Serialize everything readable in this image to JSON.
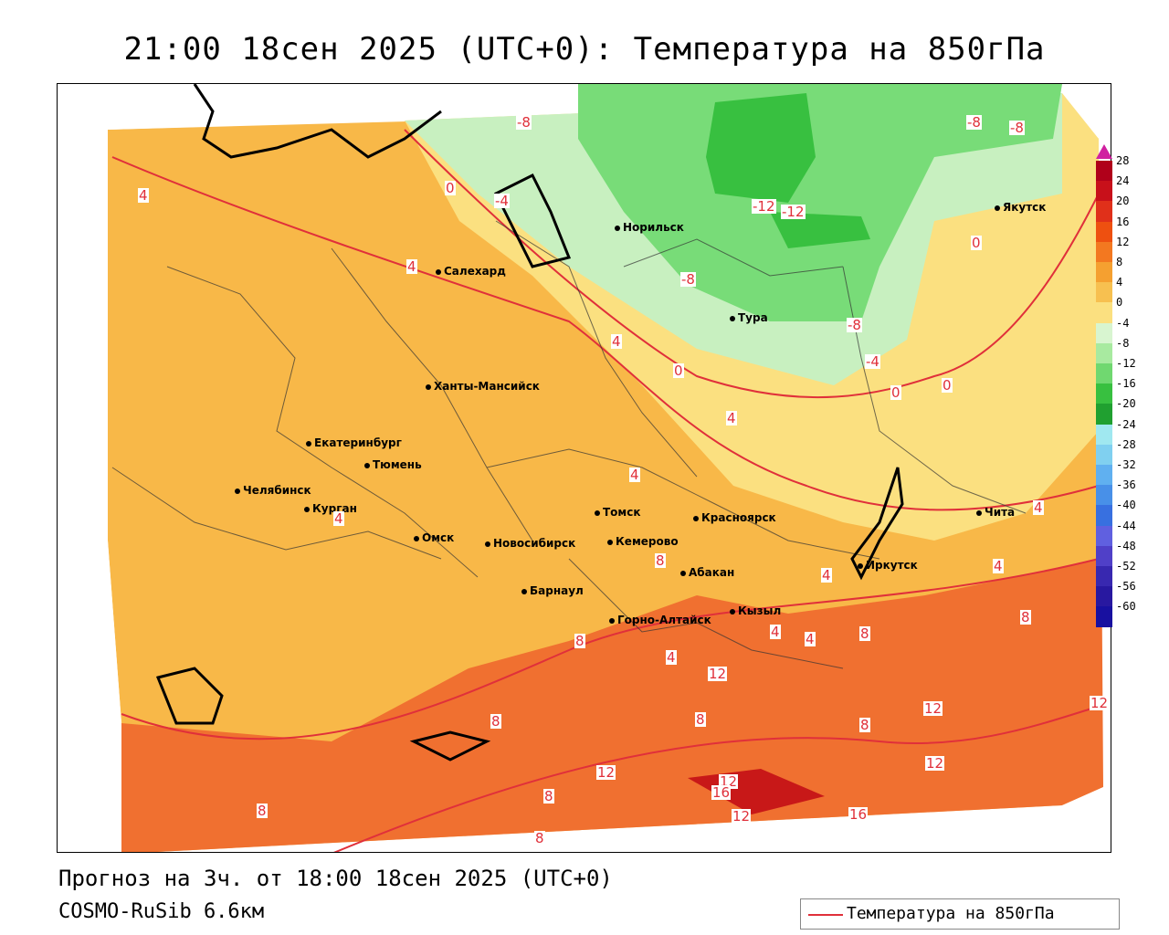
{
  "title": "21:00 18сен 2025 (UTC+0): Температура на 850гПа",
  "footer": {
    "forecast": "Прогноз на 3ч. от 18:00 18сен 2025 (UTC+0)",
    "model": "COSMO-RuSib 6.6км",
    "legend_label": "Температура на 850гПа"
  },
  "colorbar": {
    "ticks": [
      "28",
      "24",
      "20",
      "16",
      "12",
      "8",
      "4",
      "0",
      "-4",
      "-8",
      "-12",
      "-16",
      "-20",
      "-24",
      "-28",
      "-32",
      "-36",
      "-40",
      "-44",
      "-48",
      "-52",
      "-56",
      "-60"
    ],
    "colors": [
      "#b0001a",
      "#c8101a",
      "#e0301a",
      "#ee5010",
      "#f37820",
      "#f5a030",
      "#f7c050",
      "#fbe080",
      "#d8f5d0",
      "#a8eaa0",
      "#70d870",
      "#38c040",
      "#20a030",
      "#a0e8f0",
      "#80d0f0",
      "#60b0f0",
      "#4890e8",
      "#3870e0",
      "#6060e0",
      "#5040c8",
      "#3828b0",
      "#2818a0",
      "#1810a0"
    ]
  },
  "cities": [
    {
      "name": "Норильск"
    },
    {
      "name": "Якутск"
    },
    {
      "name": "Салехард"
    },
    {
      "name": "Тура"
    },
    {
      "name": "Ханты-Мансийск"
    },
    {
      "name": "Екатеринбург"
    },
    {
      "name": "Тюмень"
    },
    {
      "name": "Челябинск"
    },
    {
      "name": "Курган"
    },
    {
      "name": "Омск"
    },
    {
      "name": "Новосибирск"
    },
    {
      "name": "Томск"
    },
    {
      "name": "Кемерово"
    },
    {
      "name": "Красноярск"
    },
    {
      "name": "Абакан"
    },
    {
      "name": "Барнаул"
    },
    {
      "name": "Горно-Алтайск"
    },
    {
      "name": "Кызыл"
    },
    {
      "name": "Иркутск"
    },
    {
      "name": "Чита"
    }
  ],
  "contour_labels": [
    "-8",
    "-8",
    "-8",
    "-4",
    "0",
    "4",
    "-12",
    "-12",
    "-8",
    "0",
    "-8",
    "4",
    "0",
    "-4",
    "0",
    "0",
    "4",
    "4",
    "4",
    "4",
    "8",
    "4",
    "8",
    "8",
    "4",
    "4",
    "4",
    "4",
    "12",
    "4",
    "8",
    "8",
    "12",
    "12",
    "12",
    "12",
    "8",
    "8",
    "12",
    "16",
    "12",
    "16",
    "8",
    "8",
    "8"
  ]
}
